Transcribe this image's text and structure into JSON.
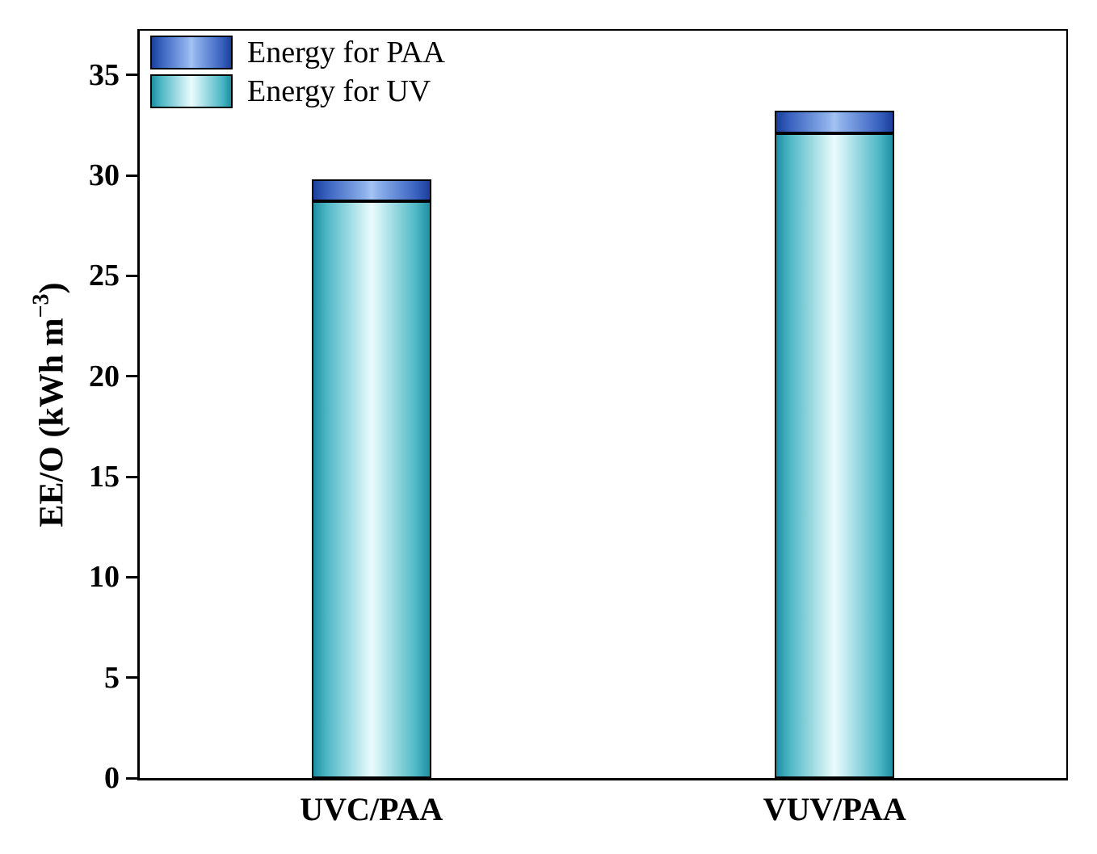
{
  "chart_data": {
    "type": "bar",
    "stacked": true,
    "orientation": "vertical",
    "title": "",
    "categories": [
      "UVC/PAA",
      "VUV/PAA"
    ],
    "series": [
      {
        "name": "Energy for UV",
        "key": "uv",
        "values": [
          28.7,
          32.1
        ],
        "gradient": [
          "#1E8FA3",
          "#4FB8C6",
          "#D6F3F6",
          "#EAFBFC"
        ]
      },
      {
        "name": "Energy for PAA",
        "key": "paa",
        "values": [
          1.1,
          1.1
        ],
        "gradient": [
          "#1B3F9B",
          "#3A63C0",
          "#8FB2EC",
          "#A6C4F4"
        ]
      }
    ],
    "totals": [
      29.8,
      33.2
    ],
    "ylabel": "EE/O (kWh m⁻³)",
    "ylabel_parts": {
      "pre": "EE/O (kWh m",
      "sup": "−3",
      "post": ")"
    },
    "xlabel": "",
    "ylim": [
      0,
      37.2
    ],
    "yticks": [
      "0",
      "5",
      "10",
      "15",
      "20",
      "25",
      "30",
      "35"
    ],
    "grid": false,
    "legend": {
      "position": "top-left",
      "entries": [
        {
          "label": "Energy for PAA",
          "series_key": "paa"
        },
        {
          "label": "Energy for UV",
          "series_key": "uv"
        }
      ]
    },
    "axis_color": "#000000",
    "bar_outline_color": "#000000",
    "background": "#FFFFFF"
  }
}
